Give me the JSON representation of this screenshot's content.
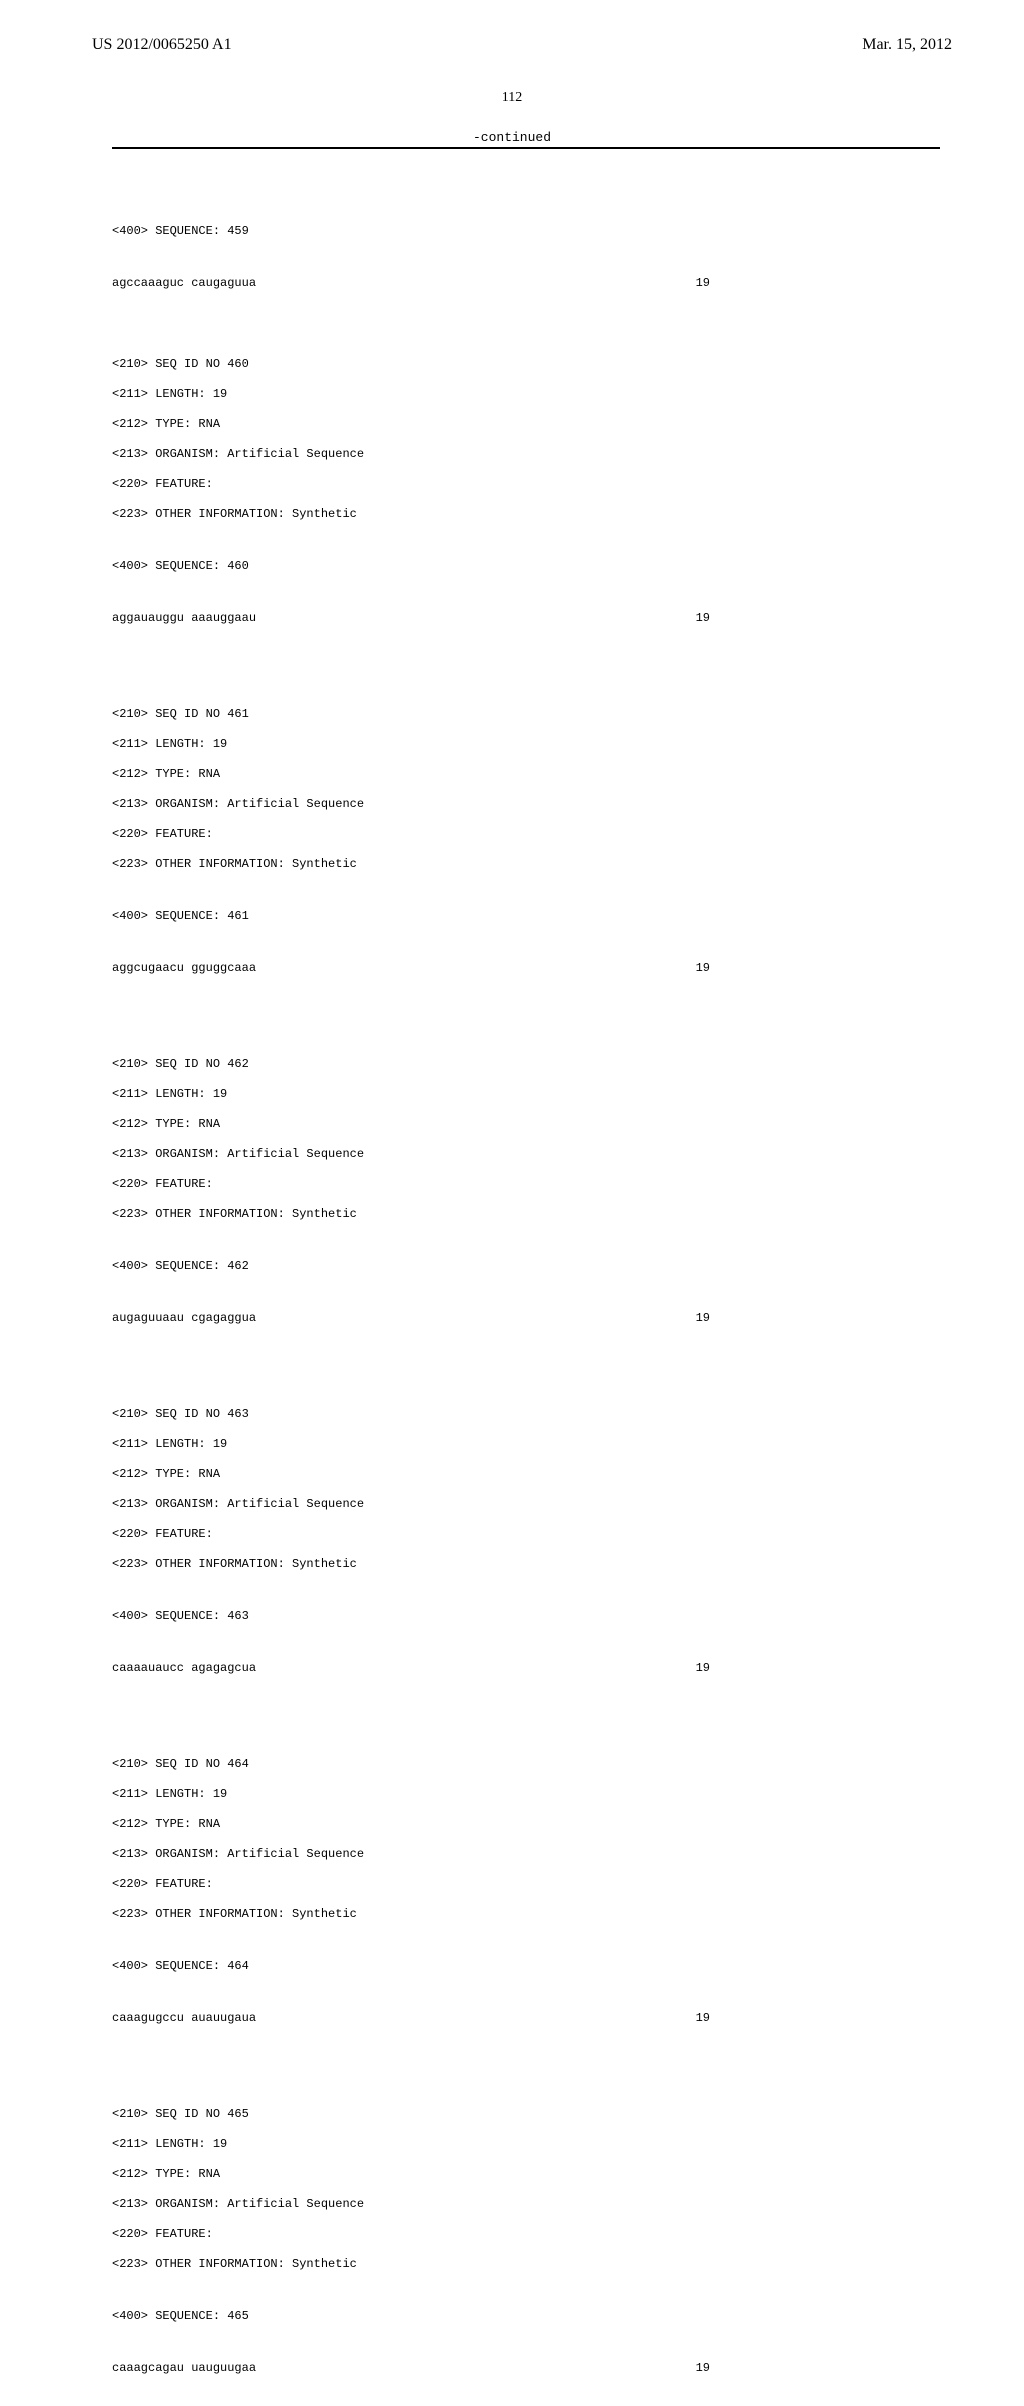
{
  "header": {
    "pub_number": "US 2012/0065250 A1",
    "pub_date": "Mar. 15, 2012"
  },
  "page_number": "112",
  "continued_label": "-continued",
  "sequences": [
    {
      "pre_meta": [
        "<400> SEQUENCE: 459"
      ],
      "seq": "agccaaaguc caugaguua",
      "seq_len": "19",
      "meta": [
        "<210> SEQ ID NO 460",
        "<211> LENGTH: 19",
        "<212> TYPE: RNA",
        "<213> ORGANISM: Artificial Sequence",
        "<220> FEATURE:",
        "<223> OTHER INFORMATION: Synthetic"
      ],
      "seq_label": "<400> SEQUENCE: 460",
      "seq2": "aggauauggu aaauggaau",
      "seq2_len": "19"
    },
    {
      "meta": [
        "<210> SEQ ID NO 461",
        "<211> LENGTH: 19",
        "<212> TYPE: RNA",
        "<213> ORGANISM: Artificial Sequence",
        "<220> FEATURE:",
        "<223> OTHER INFORMATION: Synthetic"
      ],
      "seq_label": "<400> SEQUENCE: 461",
      "seq2": "aggcugaacu gguggcaaa",
      "seq2_len": "19"
    },
    {
      "meta": [
        "<210> SEQ ID NO 462",
        "<211> LENGTH: 19",
        "<212> TYPE: RNA",
        "<213> ORGANISM: Artificial Sequence",
        "<220> FEATURE:",
        "<223> OTHER INFORMATION: Synthetic"
      ],
      "seq_label": "<400> SEQUENCE: 462",
      "seq2": "augaguuaau cgagaggua",
      "seq2_len": "19"
    },
    {
      "meta": [
        "<210> SEQ ID NO 463",
        "<211> LENGTH: 19",
        "<212> TYPE: RNA",
        "<213> ORGANISM: Artificial Sequence",
        "<220> FEATURE:",
        "<223> OTHER INFORMATION: Synthetic"
      ],
      "seq_label": "<400> SEQUENCE: 463",
      "seq2": "caaaauaucc agagagcua",
      "seq2_len": "19"
    },
    {
      "meta": [
        "<210> SEQ ID NO 464",
        "<211> LENGTH: 19",
        "<212> TYPE: RNA",
        "<213> ORGANISM: Artificial Sequence",
        "<220> FEATURE:",
        "<223> OTHER INFORMATION: Synthetic"
      ],
      "seq_label": "<400> SEQUENCE: 464",
      "seq2": "caaagugccu auauugaua",
      "seq2_len": "19"
    },
    {
      "meta": [
        "<210> SEQ ID NO 465",
        "<211> LENGTH: 19",
        "<212> TYPE: RNA",
        "<213> ORGANISM: Artificial Sequence",
        "<220> FEATURE:",
        "<223> OTHER INFORMATION: Synthetic"
      ],
      "seq_label": "<400> SEQUENCE: 465",
      "seq2": "caaagcagau uauguugaa",
      "seq2_len": "19"
    }
  ]
}
